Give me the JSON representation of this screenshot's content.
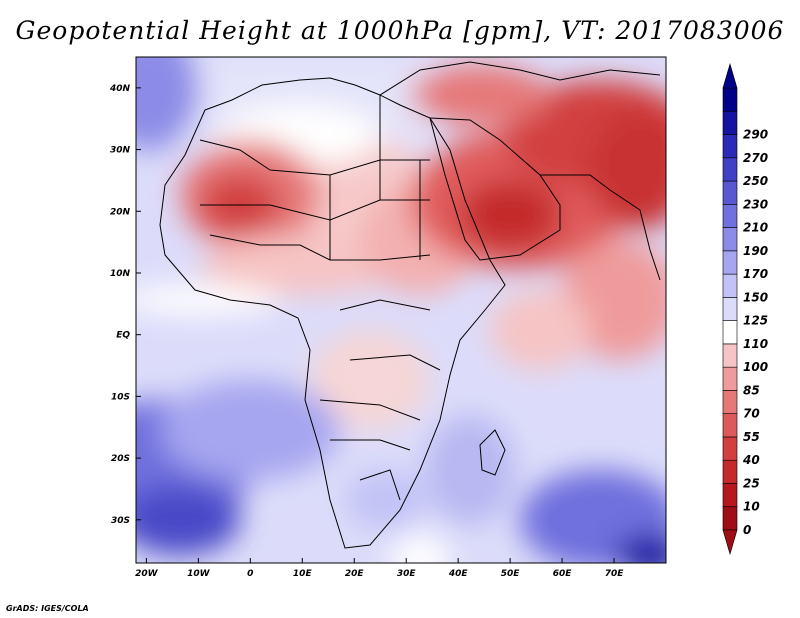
{
  "title": "Geopotential Height at 1000hPa [gpm], VT: 2017083006",
  "credit": "GrADS: IGES/COLA",
  "map": {
    "lon_range": [
      -22,
      80
    ],
    "lat_range": [
      -37,
      45
    ],
    "lon_ticks": [
      {
        "value": -20,
        "label": "20W"
      },
      {
        "value": -10,
        "label": "10W"
      },
      {
        "value": 0,
        "label": "0"
      },
      {
        "value": 10,
        "label": "10E"
      },
      {
        "value": 20,
        "label": "20E"
      },
      {
        "value": 30,
        "label": "30E"
      },
      {
        "value": 40,
        "label": "40E"
      },
      {
        "value": 50,
        "label": "50E"
      },
      {
        "value": 60,
        "label": "60E"
      },
      {
        "value": 70,
        "label": "70E"
      }
    ],
    "lat_ticks": [
      {
        "value": 40,
        "label": "40N"
      },
      {
        "value": 30,
        "label": "30N"
      },
      {
        "value": 20,
        "label": "20N"
      },
      {
        "value": 10,
        "label": "10N"
      },
      {
        "value": 0,
        "label": "EQ"
      },
      {
        "value": -10,
        "label": "10S"
      },
      {
        "value": -20,
        "label": "20S"
      },
      {
        "value": -30,
        "label": "30S"
      }
    ]
  },
  "colorbar": {
    "labels": [
      "0",
      "10",
      "25",
      "40",
      "55",
      "70",
      "85",
      "100",
      "110",
      "125",
      "150",
      "170",
      "190",
      "210",
      "230",
      "250",
      "270",
      "290"
    ],
    "colors": [
      "#9e0e14",
      "#b5191e",
      "#c4292c",
      "#d23f3f",
      "#de5a5a",
      "#e67878",
      "#ef9b9b",
      "#f6c4c4",
      "#ffffff",
      "#dcdcfa",
      "#c2c2f6",
      "#a6a6f0",
      "#8c8ce8",
      "#7070de",
      "#5858d2",
      "#4040c6",
      "#2a2ab6",
      "#1414a0",
      "#000088"
    ]
  }
}
